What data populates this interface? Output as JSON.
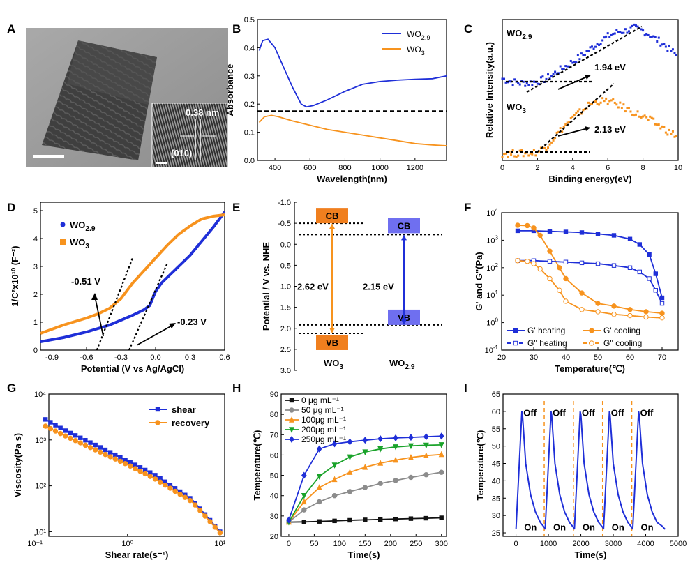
{
  "panel_letters": [
    "A",
    "B",
    "C",
    "D",
    "E",
    "F",
    "G",
    "H",
    "I"
  ],
  "colors": {
    "blue": "#1f2fd8",
    "orange": "#f7931e",
    "black": "#111111",
    "gray": "#8c8c8c",
    "green": "#1aa32a",
    "cb": "#f07f1e",
    "cbblue": "#6f6ff0"
  },
  "tem": {
    "annotation": "0.38 nm",
    "plane": "(010)"
  },
  "chart_data": [
    {
      "id": "B",
      "type": "line",
      "xlabel": "Wavelength(nm)",
      "ylabel": "Absorbance",
      "xlim": [
        300,
        1380
      ],
      "ylim": [
        0,
        0.5
      ],
      "xticks": [
        400,
        600,
        800,
        1000,
        1200
      ],
      "yticks": [
        0,
        0.1,
        0.2,
        0.3,
        0.4,
        0.5
      ],
      "ytick_labels": [
        "0.0",
        "0.1",
        "0.2",
        "0.3",
        "0.4",
        "0.5"
      ],
      "legend": "top-right",
      "reference_y": 0.175,
      "series": [
        {
          "name": "WO",
          "sub": "2.9",
          "color": "blue",
          "x": [
            310,
            330,
            360,
            400,
            450,
            500,
            550,
            580,
            620,
            700,
            800,
            900,
            1000,
            1100,
            1200,
            1300,
            1380
          ],
          "y": [
            0.39,
            0.425,
            0.43,
            0.4,
            0.33,
            0.26,
            0.2,
            0.19,
            0.195,
            0.215,
            0.245,
            0.27,
            0.28,
            0.285,
            0.288,
            0.29,
            0.3
          ]
        },
        {
          "name": "WO",
          "sub": "3",
          "color": "orange",
          "x": [
            310,
            340,
            380,
            420,
            500,
            600,
            700,
            800,
            900,
            1000,
            1100,
            1200,
            1300,
            1380
          ],
          "y": [
            0.135,
            0.155,
            0.16,
            0.155,
            0.14,
            0.125,
            0.11,
            0.1,
            0.09,
            0.08,
            0.07,
            0.06,
            0.055,
            0.052
          ]
        }
      ]
    },
    {
      "id": "C",
      "type": "scatter",
      "xlabel": "Binding energy(eV)",
      "ylabel": "Relative Intensity(a.u.)",
      "xlim": [
        0,
        10
      ],
      "xticks": [
        0,
        2,
        4,
        6,
        8,
        10
      ],
      "labels": [
        {
          "name": "WO",
          "sub": "2.9",
          "color": "blue"
        },
        {
          "name": "WO",
          "sub": "3",
          "color": "orange"
        }
      ],
      "annotations": [
        "1.94 eV",
        "2.13 eV"
      ],
      "series": [
        {
          "color": "blue",
          "x": [
            0,
            0.5,
            1,
            1.5,
            2,
            2.5,
            3,
            3.5,
            4,
            4.5,
            5,
            5.5,
            6,
            6.5,
            7,
            7.5,
            8,
            8.5,
            9,
            9.5,
            10
          ],
          "y": [
            0.58,
            0.56,
            0.55,
            0.55,
            0.56,
            0.58,
            0.62,
            0.66,
            0.7,
            0.74,
            0.79,
            0.84,
            0.88,
            0.91,
            0.92,
            0.94,
            0.92,
            0.88,
            0.84,
            0.79,
            0.74
          ]
        },
        {
          "color": "orange",
          "x": [
            0,
            0.5,
            1,
            1.5,
            2,
            2.5,
            3,
            3.5,
            4,
            4.5,
            5,
            5.5,
            6,
            6.5,
            7,
            7.5,
            8,
            8.5,
            9,
            9.5,
            10
          ],
          "y": [
            0.05,
            0.05,
            0.05,
            0.05,
            0.06,
            0.1,
            0.17,
            0.24,
            0.3,
            0.35,
            0.4,
            0.42,
            0.42,
            0.4,
            0.37,
            0.34,
            0.31,
            0.28,
            0.24,
            0.2,
            0.17
          ]
        }
      ]
    },
    {
      "id": "D",
      "type": "line",
      "xlabel": "Potential (V vs Ag/AgCl)",
      "ylabel": "1/C²x10¹⁰ (F⁻²)",
      "xlim": [
        -1.0,
        0.6
      ],
      "ylim": [
        0,
        5.3
      ],
      "xticks": [
        -0.9,
        -0.6,
        -0.3,
        0.0,
        0.3,
        0.6
      ],
      "xtick_labels": [
        "-0.9",
        "-0.6",
        "-0.3",
        "0.0",
        "0.3",
        "0.6"
      ],
      "yticks": [
        0,
        1,
        2,
        3,
        4,
        5
      ],
      "legend": "top-left",
      "annotations": [
        "-0.51 V",
        "-0.23 V"
      ],
      "series": [
        {
          "name": "WO",
          "sub": "2.9",
          "color": "blue",
          "x": [
            -1.0,
            -0.8,
            -0.6,
            -0.4,
            -0.2,
            -0.1,
            -0.05,
            0.0,
            0.05,
            0.1,
            0.2,
            0.3,
            0.4,
            0.5,
            0.6
          ],
          "y": [
            0.3,
            0.45,
            0.65,
            0.9,
            1.25,
            1.45,
            1.6,
            2.1,
            2.4,
            2.6,
            3.0,
            3.4,
            3.9,
            4.4,
            4.95
          ]
        },
        {
          "name": "WO",
          "sub": "3",
          "color": "orange",
          "x": [
            -1.0,
            -0.8,
            -0.6,
            -0.5,
            -0.4,
            -0.3,
            -0.2,
            -0.1,
            0.0,
            0.1,
            0.2,
            0.3,
            0.4,
            0.5,
            0.6
          ],
          "y": [
            0.6,
            0.9,
            1.15,
            1.3,
            1.5,
            1.85,
            2.4,
            2.85,
            3.3,
            3.75,
            4.15,
            4.45,
            4.7,
            4.8,
            4.85
          ]
        }
      ]
    },
    {
      "id": "E",
      "type": "diagram",
      "ylabel": "Potential / V vs. NHE",
      "ylim": [
        -1.0,
        3.0
      ],
      "yticks": [
        -1.0,
        -0.5,
        0.0,
        0.5,
        1.0,
        1.5,
        2.0,
        2.5,
        3.0
      ],
      "ytick_labels": [
        "-1.0",
        "-0.5",
        "0.0",
        "0.5",
        "1.0",
        "1.5",
        "2.0",
        "2.5",
        "3.0"
      ],
      "cb_label": "CB",
      "vb_label": "VB",
      "materials": [
        {
          "name": "WO",
          "sub": "3",
          "cb": -0.5,
          "vb": 2.12,
          "gap": "2.62 eV",
          "color": "cb"
        },
        {
          "name": "WO",
          "sub": "2.9",
          "cb": -0.23,
          "vb": 1.92,
          "gap": "2.15 eV",
          "color": "cbblue"
        }
      ]
    },
    {
      "id": "F",
      "type": "line",
      "yscale": "log",
      "xlabel": "Temperature(℃)",
      "ylabel": "G' and G''(Pa)",
      "xlim": [
        20,
        75
      ],
      "xticks": [
        20,
        30,
        40,
        50,
        60,
        70
      ],
      "ylim_exp": [
        -1,
        4
      ],
      "yticks_exp": [
        -1,
        0,
        1,
        2,
        3,
        4
      ],
      "legend": "bottom",
      "series": [
        {
          "name": "G' heating",
          "color": "blue",
          "filled": true,
          "x": [
            25,
            30,
            35,
            40,
            45,
            50,
            55,
            60,
            63,
            66,
            68,
            70
          ],
          "y": [
            2200,
            2200,
            2100,
            2000,
            1900,
            1700,
            1500,
            1100,
            700,
            300,
            60,
            8
          ]
        },
        {
          "name": "G' cooling",
          "color": "orange",
          "filled": true,
          "x": [
            25,
            28,
            30,
            32,
            35,
            38,
            40,
            45,
            50,
            55,
            60,
            65,
            70
          ],
          "y": [
            3500,
            3400,
            2800,
            1500,
            400,
            100,
            40,
            12,
            5,
            4,
            3,
            2.5,
            2.2
          ]
        },
        {
          "name": "G'' heating",
          "color": "blue",
          "filled": false,
          "x": [
            25,
            30,
            35,
            40,
            45,
            50,
            55,
            60,
            63,
            66,
            68,
            70
          ],
          "y": [
            180,
            180,
            170,
            160,
            150,
            140,
            120,
            100,
            70,
            40,
            15,
            5
          ]
        },
        {
          "name": "G'' cooling",
          "color": "orange",
          "filled": false,
          "x": [
            25,
            28,
            30,
            32,
            35,
            38,
            40,
            45,
            50,
            55,
            60,
            65,
            70
          ],
          "y": [
            180,
            170,
            140,
            90,
            40,
            15,
            6,
            3,
            2.5,
            2,
            1.8,
            1.6,
            1.5
          ]
        }
      ]
    },
    {
      "id": "G",
      "type": "line",
      "scale": "loglog",
      "xlabel": "Shear rate(s⁻¹)",
      "ylabel": "Viscosity(Pa s)",
      "xlim_exp": [
        -0.85,
        1.05
      ],
      "xticks_exp": [
        -1,
        0,
        1
      ],
      "xtick_labels": [
        "10⁻¹",
        "10⁰",
        "10¹"
      ],
      "ylim_exp": [
        0.9,
        4
      ],
      "yticks_exp": [
        1,
        2,
        3,
        4
      ],
      "ytick_labels": [
        "10¹",
        "10²",
        "10³",
        "10⁴"
      ],
      "legend": "top-right",
      "series": [
        {
          "name": "shear",
          "color": "blue",
          "x": [
            0.13,
            0.2,
            0.5,
            1,
            2,
            5,
            10
          ],
          "y": [
            2800,
            1700,
            700,
            350,
            170,
            50,
            10
          ]
        },
        {
          "name": "recovery",
          "color": "orange",
          "x": [
            0.13,
            0.2,
            0.5,
            1,
            2,
            5,
            10
          ],
          "y": [
            2000,
            1300,
            550,
            290,
            140,
            45,
            9.5
          ]
        }
      ]
    },
    {
      "id": "H",
      "type": "line",
      "xlabel": "Time(s)",
      "ylabel": "Temperature(℃)",
      "xlim": [
        -15,
        310
      ],
      "ylim": [
        20,
        90
      ],
      "xticks": [
        0,
        50,
        100,
        150,
        200,
        250,
        300
      ],
      "yticks": [
        20,
        30,
        40,
        50,
        60,
        70,
        80,
        90
      ],
      "legend": "top-left",
      "series": [
        {
          "name": "0  μg mL⁻¹",
          "color": "black",
          "marker": "square",
          "x": [
            0,
            30,
            60,
            90,
            120,
            150,
            180,
            210,
            240,
            270,
            300
          ],
          "y": [
            27,
            27.1,
            27.3,
            27.6,
            27.9,
            28.1,
            28.3,
            28.5,
            28.7,
            28.9,
            29.1
          ]
        },
        {
          "name": "50  μg mL⁻¹",
          "color": "gray",
          "marker": "circle",
          "x": [
            0,
            30,
            60,
            90,
            120,
            150,
            180,
            210,
            240,
            270,
            300
          ],
          "y": [
            27,
            33,
            37,
            40,
            42,
            44,
            46,
            47.5,
            49,
            50.3,
            51.5
          ]
        },
        {
          "name": "100μg mL⁻¹",
          "color": "orange",
          "marker": "triangle",
          "x": [
            0,
            30,
            60,
            90,
            120,
            150,
            180,
            210,
            240,
            270,
            300
          ],
          "y": [
            27,
            37,
            44,
            48,
            51.5,
            54,
            56,
            57.5,
            58.8,
            59.7,
            60.3
          ]
        },
        {
          "name": "200μg mL⁻¹",
          "color": "green",
          "marker": "triangle-down",
          "x": [
            0,
            30,
            60,
            90,
            120,
            150,
            180,
            210,
            240,
            270,
            300
          ],
          "y": [
            27,
            40,
            49.5,
            55,
            59,
            61.5,
            63,
            64,
            64.5,
            64.8,
            65
          ]
        },
        {
          "name": "250μg mL⁻¹",
          "color": "blue",
          "marker": "diamond",
          "x": [
            0,
            30,
            60,
            90,
            120,
            150,
            180,
            210,
            240,
            270,
            300
          ],
          "y": [
            28,
            50,
            63,
            65.5,
            66.5,
            67.3,
            68,
            68.4,
            68.7,
            69,
            69.3
          ]
        }
      ]
    },
    {
      "id": "I",
      "type": "line",
      "xlabel": "Time(s)",
      "ylabel": "Temperature(℃)",
      "xlim": [
        -400,
        5000
      ],
      "ylim": [
        24,
        65
      ],
      "xticks": [
        0,
        1000,
        2000,
        3000,
        4000,
        5000
      ],
      "yticks": [
        25,
        30,
        35,
        40,
        45,
        50,
        55,
        60,
        65
      ],
      "off_label": "Off",
      "on_label": "On",
      "cycle_starts": [
        0,
        900,
        1800,
        2700,
        3600
      ],
      "series": [
        {
          "color": "blue",
          "x": [
            0,
            180,
            200,
            300,
            450,
            600,
            750,
            880,
            900,
            1080,
            1100,
            1200,
            1350,
            1500,
            1650,
            1780,
            1800,
            1980,
            2000,
            2100,
            2250,
            2400,
            2550,
            2680,
            2700,
            2880,
            2900,
            3000,
            3150,
            3300,
            3450,
            3580,
            3600,
            3780,
            3800,
            3900,
            4050,
            4200,
            4350,
            4500,
            4600
          ],
          "y": [
            26,
            60,
            59,
            45,
            36,
            31,
            28,
            26.5,
            26,
            60,
            59,
            45,
            36,
            31,
            28,
            26.5,
            26,
            60,
            59,
            45,
            36,
            31,
            28,
            26.5,
            26,
            60,
            59,
            45,
            36,
            31,
            28,
            26.5,
            26,
            60,
            59,
            45,
            36,
            31,
            28,
            27,
            26
          ]
        }
      ]
    }
  ]
}
